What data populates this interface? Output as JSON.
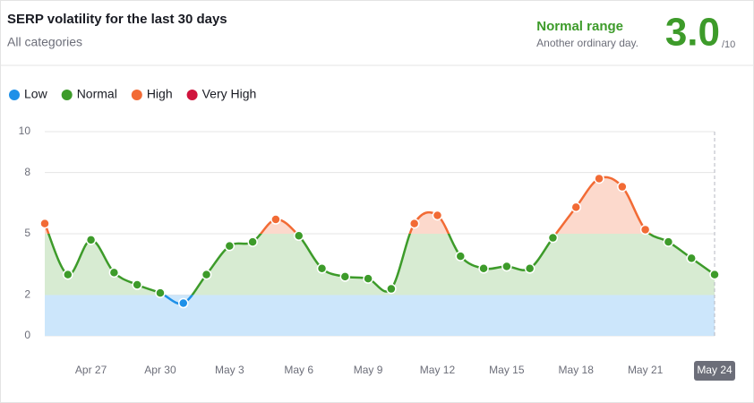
{
  "chart_data": {
    "type": "line",
    "title": "SERP volatility for the last 30 days",
    "subtitle": "All categories",
    "status": "Normal range",
    "status_note": "Another ordinary day.",
    "score": "3.0",
    "score_unit": "/10",
    "legend": [
      {
        "name": "Low",
        "color": "#1e90e8",
        "from": 0,
        "to": 2,
        "fill": "#cce6fb"
      },
      {
        "name": "Normal",
        "color": "#3d9b2a",
        "from": 2,
        "to": 5,
        "fill": "#d7ebd2"
      },
      {
        "name": "High",
        "color": "#f26b35",
        "from": 5,
        "to": 8,
        "fill": "#fcd9cc"
      },
      {
        "name": "Very High",
        "color": "#d0143c",
        "from": 8,
        "to": 10,
        "fill": "#f7ccd5"
      }
    ],
    "categories": [
      null,
      null,
      "Apr 27",
      null,
      null,
      "Apr 30",
      null,
      null,
      "May 3",
      null,
      null,
      "May 6",
      null,
      null,
      "May 9",
      null,
      null,
      "May 12",
      null,
      null,
      "May 15",
      null,
      null,
      "May 18",
      null,
      null,
      "May 21",
      null,
      null,
      "May 24"
    ],
    "values": [
      5.5,
      3.0,
      4.7,
      3.1,
      2.5,
      2.1,
      1.6,
      3.0,
      4.4,
      4.6,
      5.7,
      4.9,
      3.3,
      2.9,
      2.8,
      2.3,
      5.5,
      5.9,
      3.9,
      3.3,
      3.4,
      3.3,
      4.8,
      6.3,
      7.7,
      7.3,
      5.2,
      4.6,
      3.8,
      3.0
    ],
    "ylim": [
      0,
      10
    ],
    "yticks": [
      0,
      2,
      5,
      8,
      10
    ],
    "grid": true
  }
}
